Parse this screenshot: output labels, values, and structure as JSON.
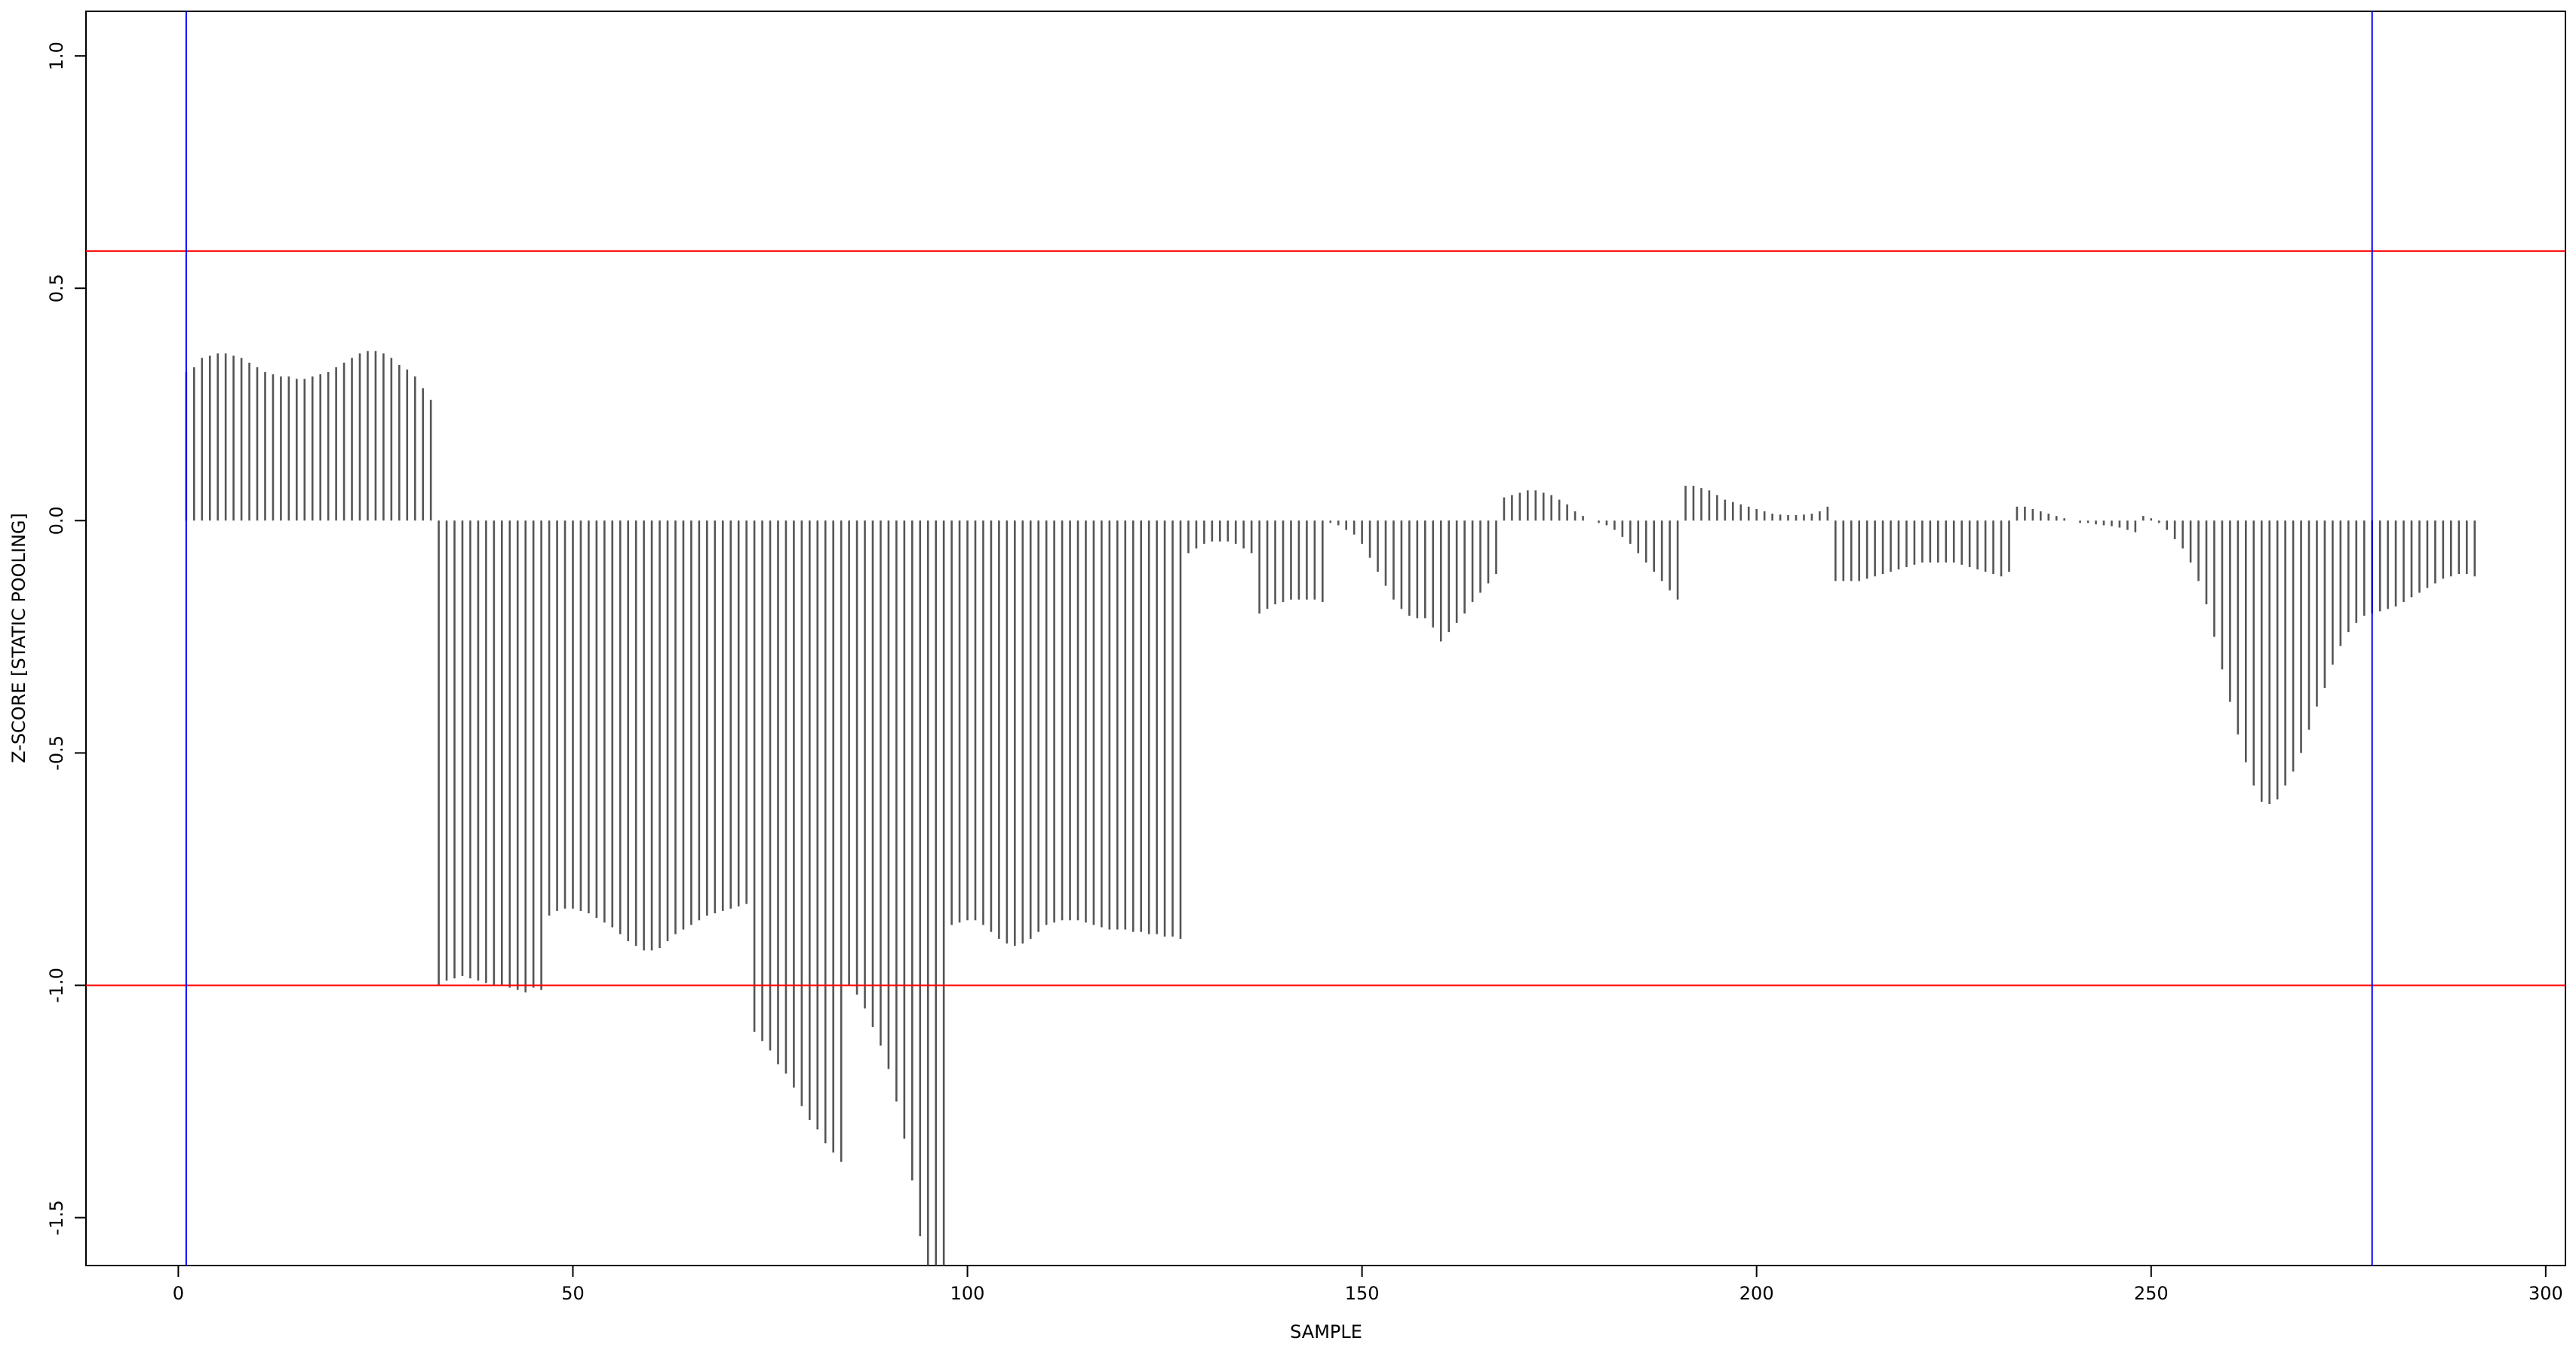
{
  "chart_data": {
    "type": "spike",
    "x_label": "SAMPLE",
    "y_label": "Z-SCORE [STATIC POOLING]",
    "color": "#555555",
    "x": [
      1,
      2,
      3,
      4,
      5,
      6,
      7,
      8,
      9,
      10,
      11,
      12,
      13,
      14,
      15,
      16,
      17,
      18,
      19,
      20,
      21,
      22,
      23,
      24,
      25,
      26,
      27,
      28,
      29,
      30,
      31,
      32,
      33,
      34,
      35,
      36,
      37,
      38,
      39,
      40,
      41,
      42,
      43,
      44,
      45,
      46,
      47,
      48,
      49,
      50,
      51,
      52,
      53,
      54,
      55,
      56,
      57,
      58,
      59,
      60,
      61,
      62,
      63,
      64,
      65,
      66,
      67,
      68,
      69,
      70,
      71,
      72,
      73,
      74,
      75,
      76,
      77,
      78,
      79,
      80,
      81,
      82,
      83,
      84,
      85,
      86,
      87,
      88,
      89,
      90,
      91,
      92,
      93,
      94,
      95,
      96,
      97,
      98,
      99,
      100,
      101,
      102,
      103,
      104,
      105,
      106,
      107,
      108,
      109,
      110,
      111,
      112,
      113,
      114,
      115,
      116,
      117,
      118,
      119,
      120,
      121,
      122,
      123,
      124,
      125,
      126,
      127,
      128,
      129,
      130,
      131,
      132,
      133,
      134,
      135,
      136,
      137,
      138,
      139,
      140,
      141,
      142,
      143,
      144,
      145,
      146,
      147,
      148,
      149,
      150,
      151,
      152,
      153,
      154,
      155,
      156,
      157,
      158,
      159,
      160,
      161,
      162,
      163,
      164,
      165,
      166,
      167,
      168,
      169,
      170,
      171,
      172,
      173,
      174,
      175,
      176,
      177,
      178,
      179,
      180,
      181,
      182,
      183,
      184,
      185,
      186,
      187,
      188,
      189,
      190,
      191,
      192,
      193,
      194,
      195,
      196,
      197,
      198,
      199,
      200,
      201,
      202,
      203,
      204,
      205,
      206,
      207,
      208,
      209,
      210,
      211,
      212,
      213,
      214,
      215,
      216,
      217,
      218,
      219,
      220,
      221,
      222,
      223,
      224,
      225,
      226,
      227,
      228,
      229,
      230,
      231,
      232,
      233,
      234,
      235,
      236,
      237,
      238,
      239,
      240,
      241,
      242,
      243,
      244,
      245,
      246,
      247,
      248,
      249,
      250,
      251,
      252,
      253,
      254,
      255,
      256,
      257,
      258,
      259,
      260,
      261,
      262,
      263,
      264,
      265,
      266,
      267,
      268,
      269,
      270,
      271,
      272,
      273,
      274,
      275,
      276,
      277,
      278,
      279,
      280,
      281,
      282,
      283,
      284,
      285,
      286,
      287,
      288,
      289,
      290,
      291
    ],
    "values": [
      0.32,
      0.33,
      0.35,
      0.355,
      0.36,
      0.36,
      0.355,
      0.35,
      0.34,
      0.33,
      0.32,
      0.315,
      0.31,
      0.31,
      0.305,
      0.305,
      0.31,
      0.315,
      0.32,
      0.33,
      0.34,
      0.35,
      0.36,
      0.365,
      0.365,
      0.36,
      0.35,
      0.335,
      0.325,
      0.31,
      0.285,
      0.26,
      -1.0,
      -0.99,
      -0.985,
      -0.98,
      -0.985,
      -0.99,
      -0.995,
      -1.0,
      -1.0,
      -1.005,
      -1.01,
      -1.015,
      -1.005,
      -1.01,
      -0.85,
      -0.84,
      -0.835,
      -0.835,
      -0.84,
      -0.845,
      -0.855,
      -0.865,
      -0.875,
      -0.89,
      -0.905,
      -0.915,
      -0.925,
      -0.925,
      -0.92,
      -0.905,
      -0.89,
      -0.88,
      -0.87,
      -0.86,
      -0.85,
      -0.845,
      -0.84,
      -0.835,
      -0.83,
      -0.825,
      -1.1,
      -1.12,
      -1.14,
      -1.17,
      -1.19,
      -1.22,
      -1.26,
      -1.29,
      -1.31,
      -1.34,
      -1.36,
      -1.38,
      -1.0,
      -1.02,
      -1.05,
      -1.09,
      -1.13,
      -1.18,
      -1.25,
      -1.33,
      -1.42,
      -1.54,
      -1.65,
      -1.75,
      -1.8,
      -0.87,
      -0.865,
      -0.86,
      -0.86,
      -0.87,
      -0.885,
      -0.9,
      -0.91,
      -0.915,
      -0.91,
      -0.9,
      -0.885,
      -0.87,
      -0.865,
      -0.86,
      -0.86,
      -0.86,
      -0.865,
      -0.87,
      -0.875,
      -0.88,
      -0.88,
      -0.88,
      -0.885,
      -0.885,
      -0.89,
      -0.89,
      -0.895,
      -0.895,
      -0.9,
      -0.07,
      -0.06,
      -0.05,
      -0.045,
      -0.045,
      -0.045,
      -0.05,
      -0.06,
      -0.07,
      -0.2,
      -0.19,
      -0.18,
      -0.175,
      -0.17,
      -0.17,
      -0.17,
      -0.17,
      -0.175,
      -0.005,
      -0.01,
      -0.02,
      -0.03,
      -0.05,
      -0.08,
      -0.11,
      -0.14,
      -0.17,
      -0.19,
      -0.205,
      -0.21,
      -0.21,
      -0.23,
      -0.26,
      -0.24,
      -0.22,
      -0.2,
      -0.175,
      -0.155,
      -0.135,
      -0.115,
      0.05,
      0.055,
      0.06,
      0.065,
      0.065,
      0.06,
      0.055,
      0.045,
      0.035,
      0.02,
      0.01,
      0.0,
      -0.005,
      -0.01,
      -0.02,
      -0.035,
      -0.05,
      -0.07,
      -0.09,
      -0.11,
      -0.13,
      -0.15,
      -0.17,
      0.075,
      0.075,
      0.07,
      0.065,
      0.055,
      0.045,
      0.04,
      0.035,
      0.03,
      0.025,
      0.02,
      0.015,
      0.013,
      0.012,
      0.012,
      0.013,
      0.015,
      0.02,
      0.03,
      -0.13,
      -0.13,
      -0.13,
      -0.13,
      -0.125,
      -0.12,
      -0.115,
      -0.11,
      -0.105,
      -0.1,
      -0.095,
      -0.09,
      -0.09,
      -0.09,
      -0.09,
      -0.09,
      -0.095,
      -0.1,
      -0.105,
      -0.11,
      -0.115,
      -0.12,
      -0.11,
      0.03,
      0.03,
      0.025,
      0.02,
      0.015,
      0.01,
      0.005,
      0,
      -0.005,
      -0.005,
      -0.008,
      -0.01,
      -0.012,
      -0.015,
      -0.02,
      -0.025,
      0.01,
      0.005,
      -0.005,
      -0.02,
      -0.04,
      -0.06,
      -0.09,
      -0.13,
      -0.18,
      -0.25,
      -0.32,
      -0.39,
      -0.46,
      -0.52,
      -0.57,
      -0.605,
      -0.61,
      -0.6,
      -0.57,
      -0.54,
      -0.5,
      -0.45,
      -0.4,
      -0.36,
      -0.31,
      -0.27,
      -0.24,
      -0.22,
      -0.205,
      -0.2,
      -0.195,
      -0.19,
      -0.185,
      -0.175,
      -0.165,
      -0.155,
      -0.145,
      -0.135,
      -0.125,
      -0.12,
      -0.115,
      -0.115,
      -0.12
    ],
    "xlim": [
      -11.7,
      302.5
    ],
    "ylim": [
      -1.603,
      1.096
    ],
    "xticks": [
      0,
      50,
      100,
      150,
      200,
      250,
      300
    ],
    "yticks": [
      {
        "value": -1.5,
        "label": "-1.5"
      },
      {
        "value": -1.0,
        "label": "-1.0"
      },
      {
        "value": -0.5,
        "label": "-0.5"
      },
      {
        "value": 0.0,
        "label": "0.0"
      },
      {
        "value": 0.5,
        "label": "0.5"
      },
      {
        "value": 1.0,
        "label": "1.0"
      }
    ],
    "hlines": [
      {
        "value": 0.58,
        "color": "#ff0000"
      },
      {
        "value": -1.0,
        "color": "#ff0000"
      }
    ],
    "vlines": [
      {
        "value": 1,
        "color": "#0000ff"
      },
      {
        "value": 278,
        "color": "#0000ff"
      }
    ]
  }
}
